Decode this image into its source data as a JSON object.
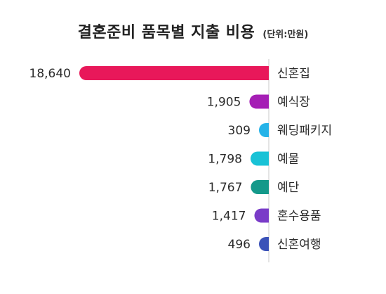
{
  "title": "결혼준비 품목별 지출 비용",
  "unit_label": "(단위:만원)",
  "chart_data": {
    "type": "bar",
    "orientation": "horizontal",
    "title": "결혼준비 품목별 지출 비용",
    "unit": "(단위:만원)",
    "categories": [
      "신혼집",
      "예식장",
      "웨딩패키지",
      "예물",
      "예단",
      "혼수용품",
      "신혼여행"
    ],
    "values": [
      18640,
      1905,
      309,
      1798,
      1767,
      1417,
      496
    ],
    "value_labels": [
      "18,640",
      "1,905",
      "309",
      "1,798",
      "1,767",
      "1,417",
      "496"
    ],
    "colors": [
      "#e8185a",
      "#a51fb5",
      "#25b3e8",
      "#19c2d6",
      "#14998a",
      "#7a3cc8",
      "#3a52b8"
    ],
    "xlim": [
      0,
      18640
    ],
    "grid": false,
    "legend": "none"
  }
}
